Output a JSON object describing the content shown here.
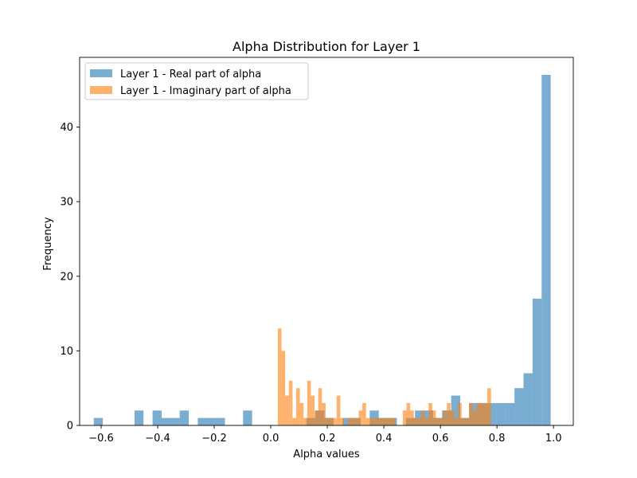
{
  "chart_data": {
    "type": "histogram",
    "title": "Alpha Distribution for Layer 1",
    "xlabel": "Alpha values",
    "ylabel": "Frequency",
    "xlim": [
      -0.676,
      1.07
    ],
    "ylim": [
      0,
      49.35
    ],
    "xticks": [
      -0.6,
      -0.4,
      -0.2,
      0.0,
      0.2,
      0.4,
      0.6,
      0.8,
      1.0
    ],
    "xtick_labels": [
      "−0.6",
      "−0.4",
      "−0.2",
      "0.0",
      "0.2",
      "0.4",
      "0.6",
      "0.8",
      "1.0"
    ],
    "yticks": [
      0,
      10,
      20,
      30,
      40
    ],
    "ytick_labels": [
      "0",
      "10",
      "20",
      "30",
      "40"
    ],
    "grid": false,
    "legend_position": "top-left",
    "series": [
      {
        "name": "Layer 1 - Real part of alpha",
        "color": "#1f77b4",
        "opacity": 0.6,
        "bins": [
          [
            -0.626,
            -0.594,
            1
          ],
          [
            -0.482,
            -0.45,
            2
          ],
          [
            -0.418,
            -0.386,
            2
          ],
          [
            -0.386,
            -0.322,
            1
          ],
          [
            -0.322,
            -0.29,
            2
          ],
          [
            -0.258,
            -0.162,
            1
          ],
          [
            -0.098,
            -0.066,
            2
          ],
          [
            0.126,
            0.158,
            1
          ],
          [
            0.158,
            0.19,
            2
          ],
          [
            0.19,
            0.222,
            1
          ],
          [
            0.254,
            0.286,
            1
          ],
          [
            0.286,
            0.318,
            1
          ],
          [
            0.35,
            0.382,
            2
          ],
          [
            0.382,
            0.414,
            1
          ],
          [
            0.414,
            0.446,
            1
          ],
          [
            0.478,
            0.51,
            1
          ],
          [
            0.51,
            0.542,
            2
          ],
          [
            0.542,
            0.574,
            2
          ],
          [
            0.574,
            0.606,
            1
          ],
          [
            0.606,
            0.638,
            2
          ],
          [
            0.638,
            0.67,
            4
          ],
          [
            0.67,
            0.702,
            1
          ],
          [
            0.702,
            0.734,
            3
          ],
          [
            0.734,
            0.766,
            3
          ],
          [
            0.766,
            0.798,
            3
          ],
          [
            0.798,
            0.83,
            3
          ],
          [
            0.83,
            0.862,
            3
          ],
          [
            0.862,
            0.894,
            5
          ],
          [
            0.894,
            0.926,
            7
          ],
          [
            0.926,
            0.958,
            17
          ],
          [
            0.958,
            0.99,
            47
          ]
        ]
      },
      {
        "name": "Layer 1 - Imaginary part of alpha",
        "color": "#ff7f0e",
        "opacity": 0.6,
        "bins": [
          [
            0.025,
            0.038,
            13
          ],
          [
            0.038,
            0.051,
            10
          ],
          [
            0.051,
            0.064,
            4
          ],
          [
            0.064,
            0.077,
            6
          ],
          [
            0.077,
            0.09,
            1
          ],
          [
            0.09,
            0.103,
            5
          ],
          [
            0.103,
            0.116,
            3
          ],
          [
            0.116,
            0.129,
            1
          ],
          [
            0.129,
            0.142,
            6
          ],
          [
            0.142,
            0.155,
            4
          ],
          [
            0.155,
            0.168,
            2
          ],
          [
            0.168,
            0.181,
            5
          ],
          [
            0.181,
            0.194,
            3
          ],
          [
            0.194,
            0.207,
            1
          ],
          [
            0.207,
            0.22,
            1
          ],
          [
            0.22,
            0.233,
            1
          ],
          [
            0.233,
            0.246,
            4
          ],
          [
            0.246,
            0.259,
            1
          ],
          [
            0.259,
            0.272,
            0
          ],
          [
            0.272,
            0.285,
            1
          ],
          [
            0.285,
            0.298,
            1
          ],
          [
            0.298,
            0.311,
            1
          ],
          [
            0.311,
            0.324,
            2
          ],
          [
            0.324,
            0.337,
            3
          ],
          [
            0.337,
            0.35,
            1
          ],
          [
            0.35,
            0.363,
            1
          ],
          [
            0.363,
            0.376,
            1
          ],
          [
            0.376,
            0.389,
            1
          ],
          [
            0.389,
            0.402,
            1
          ],
          [
            0.402,
            0.415,
            1
          ],
          [
            0.415,
            0.428,
            1
          ],
          [
            0.428,
            0.441,
            1
          ],
          [
            0.441,
            0.454,
            0
          ],
          [
            0.454,
            0.467,
            0
          ],
          [
            0.467,
            0.48,
            2
          ],
          [
            0.48,
            0.493,
            3
          ],
          [
            0.493,
            0.506,
            2
          ],
          [
            0.506,
            0.519,
            1
          ],
          [
            0.519,
            0.532,
            1
          ],
          [
            0.532,
            0.545,
            2
          ],
          [
            0.545,
            0.558,
            1
          ],
          [
            0.558,
            0.571,
            3
          ],
          [
            0.571,
            0.584,
            2
          ],
          [
            0.584,
            0.597,
            1
          ],
          [
            0.597,
            0.61,
            1
          ],
          [
            0.61,
            0.623,
            2
          ],
          [
            0.623,
            0.636,
            3
          ],
          [
            0.636,
            0.649,
            2
          ],
          [
            0.649,
            0.662,
            1
          ],
          [
            0.662,
            0.675,
            3
          ],
          [
            0.675,
            0.688,
            1
          ],
          [
            0.688,
            0.701,
            1
          ],
          [
            0.701,
            0.714,
            3
          ],
          [
            0.714,
            0.727,
            2
          ],
          [
            0.727,
            0.74,
            3
          ],
          [
            0.74,
            0.753,
            3
          ],
          [
            0.753,
            0.766,
            3
          ],
          [
            0.766,
            0.779,
            5
          ]
        ]
      }
    ]
  }
}
